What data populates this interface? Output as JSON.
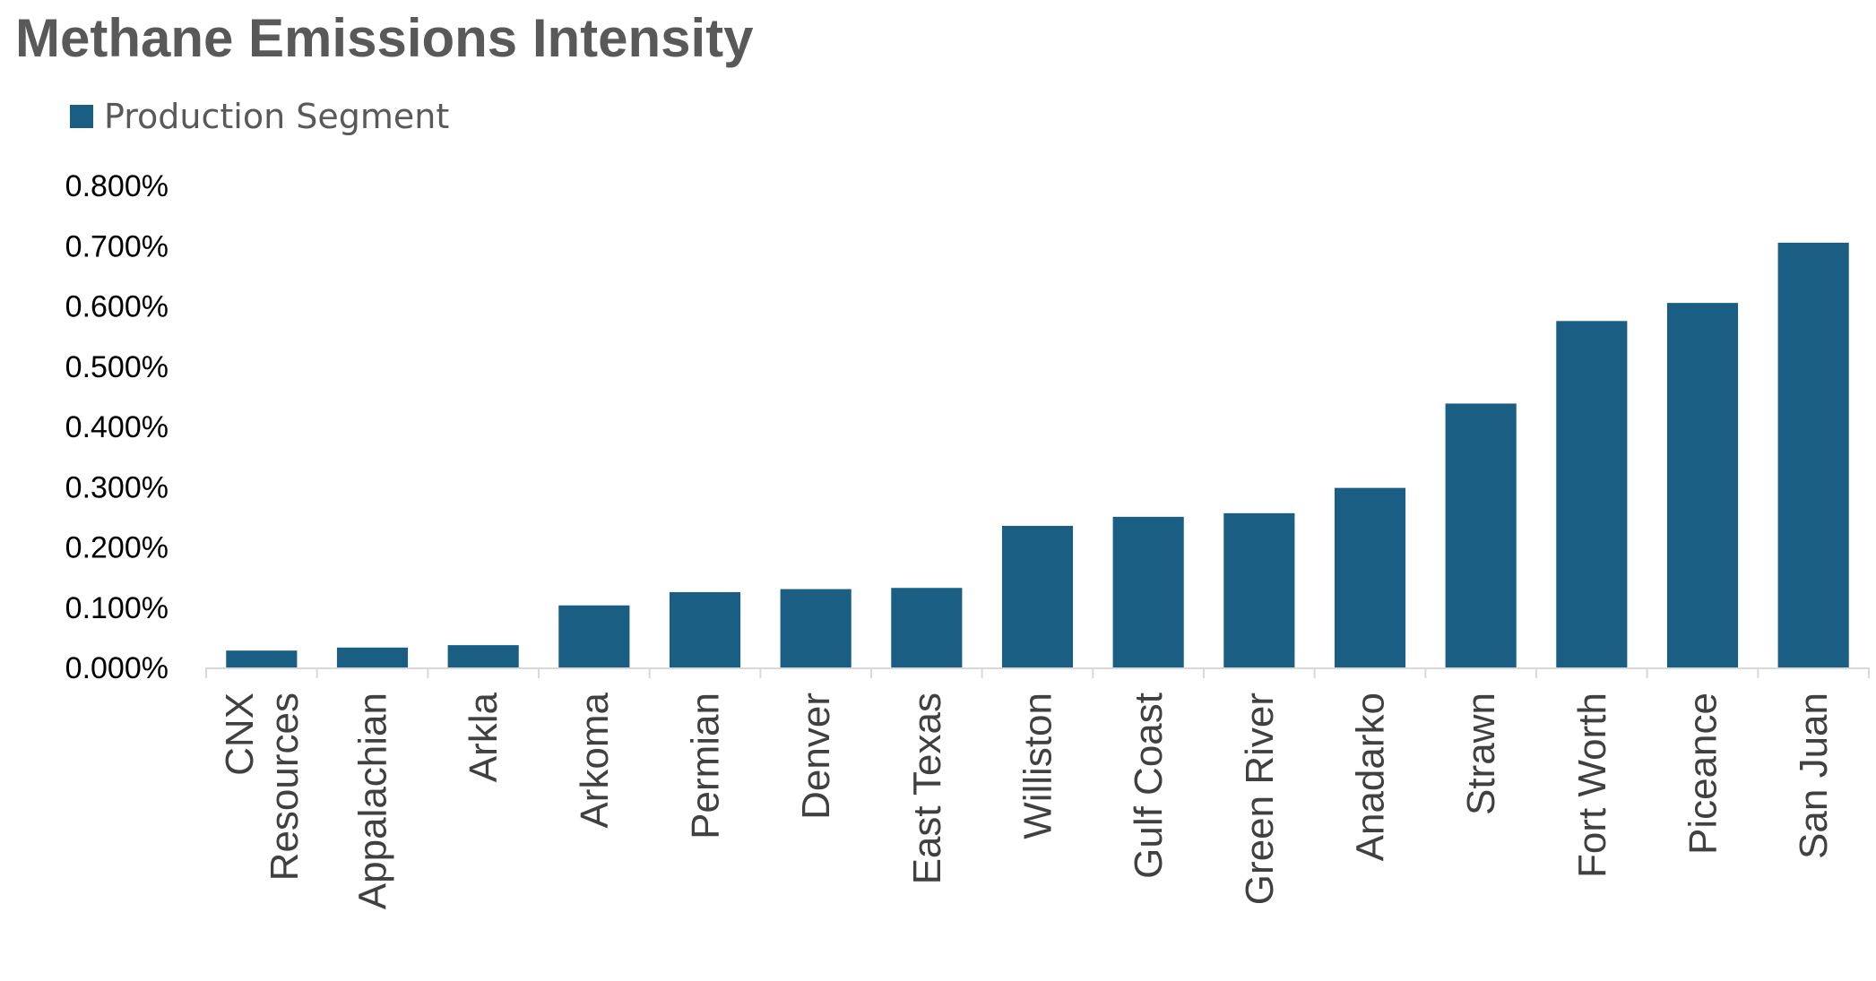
{
  "chart_data": {
    "type": "bar",
    "title": "Methane Emissions Intensity",
    "legend_position": "top-left",
    "grid": false,
    "xlabel": "",
    "ylabel": "",
    "ylim": [
      0,
      0.8
    ],
    "y_ticks": [
      "0.000%",
      "0.100%",
      "0.200%",
      "0.300%",
      "0.400%",
      "0.500%",
      "0.600%",
      "0.700%",
      "0.800%"
    ],
    "categories": [
      [
        "CNX",
        "Resources"
      ],
      [
        "Appalachian"
      ],
      [
        "Arkla"
      ],
      [
        "Arkoma"
      ],
      [
        "Permian"
      ],
      [
        "Denver"
      ],
      [
        "East Texas"
      ],
      [
        "Williston"
      ],
      [
        "Gulf Coast"
      ],
      [
        "Green River"
      ],
      [
        "Anadarko"
      ],
      [
        "Strawn"
      ],
      [
        "Fort Worth"
      ],
      [
        "Piceance"
      ],
      [
        "San Juan"
      ]
    ],
    "series": [
      {
        "name": "Production Segment",
        "color": "#1a5f83",
        "values": [
          0.028,
          0.033,
          0.037,
          0.103,
          0.125,
          0.13,
          0.132,
          0.235,
          0.25,
          0.256,
          0.298,
          0.438,
          0.575,
          0.605,
          0.705
        ]
      }
    ]
  }
}
